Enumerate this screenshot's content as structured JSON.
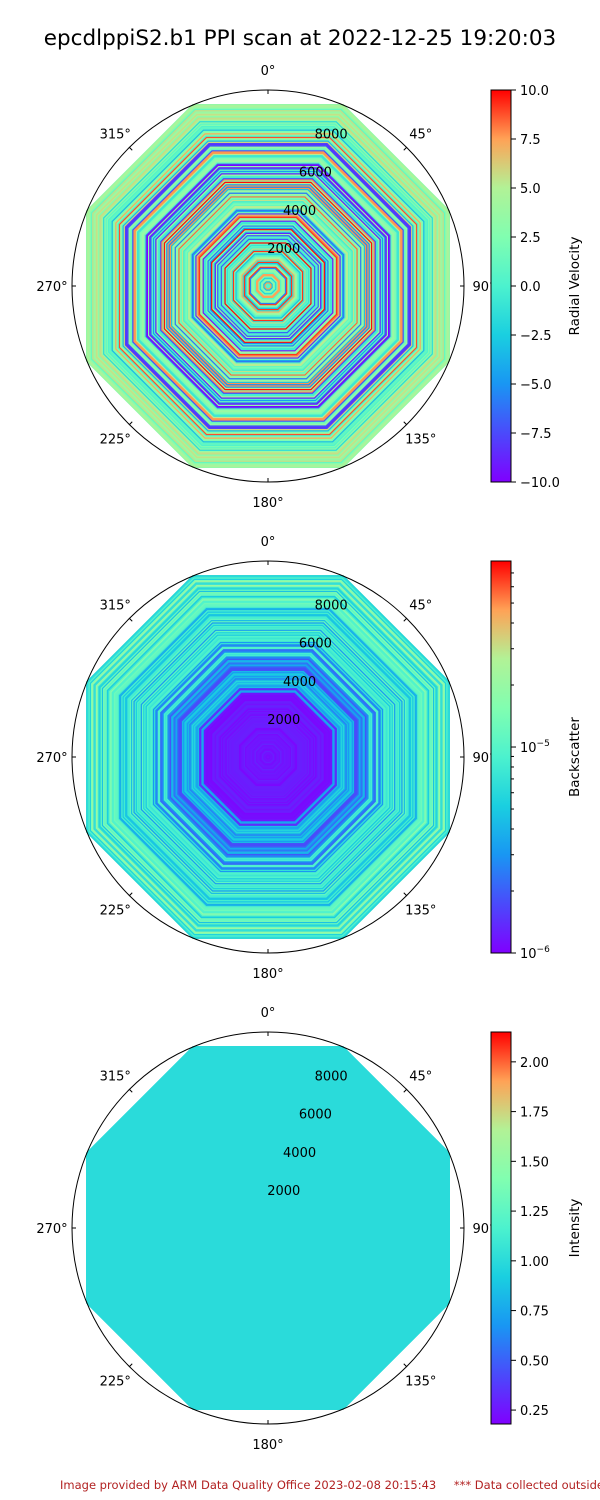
{
  "title": "epcdlppiS2.b1 PPI scan at 2022-12-25 19:20:03",
  "footer": {
    "left": "Image provided by ARM Data Quality Office 2023-02-08 20:15:43",
    "right": "*** Data collected outside"
  },
  "chart_data": [
    {
      "type": "heatmap",
      "projection": "polar",
      "angle_ticks": [
        "0°",
        "45°",
        "90°",
        "135°",
        "180°",
        "225°",
        "270°",
        "315°"
      ],
      "radial_ticks": [
        "2000",
        "4000",
        "6000",
        "8000"
      ],
      "colorbar": {
        "label": "Radial Velocity",
        "scale": "linear",
        "range": [
          -10,
          10
        ],
        "ticks": [
          "10.0",
          "7.5",
          "5.0",
          "2.5",
          "0.0",
          "−2.5",
          "−5.0",
          "−7.5",
          "−10.0"
        ],
        "colormap": "rainbow"
      },
      "data_summary": "Noisy radial velocity across all range gates, values spanning the full -10 to 10 range"
    },
    {
      "type": "heatmap",
      "projection": "polar",
      "angle_ticks": [
        "0°",
        "45°",
        "90°",
        "135°",
        "180°",
        "225°",
        "270°",
        "315°"
      ],
      "radial_ticks": [
        "2000",
        "4000",
        "6000",
        "8000"
      ],
      "colorbar": {
        "label": "Backscatter",
        "scale": "log",
        "range": [
          1e-06,
          8e-05
        ],
        "ticks": [
          "10^{-5}",
          "10^{-6}"
        ],
        "colormap": "rainbow"
      },
      "data_summary": "Backscatter near 1e-6 close to the scanner, increasing toward 1e-5 at outer ranges"
    },
    {
      "type": "heatmap",
      "projection": "polar",
      "angle_ticks": [
        "0°",
        "45°",
        "90°",
        "135°",
        "180°",
        "225°",
        "270°",
        "315°"
      ],
      "radial_ticks": [
        "2000",
        "4000",
        "6000",
        "8000"
      ],
      "colorbar": {
        "label": "Intensity",
        "scale": "linear",
        "range": [
          0.18,
          2.15
        ],
        "ticks": [
          "2.00",
          "1.75",
          "1.50",
          "1.25",
          "1.00",
          "0.75",
          "0.50",
          "0.25"
        ],
        "colormap": "rainbow"
      },
      "data_summary": "Uniform intensity of about 1.0 over the entire scan"
    }
  ]
}
